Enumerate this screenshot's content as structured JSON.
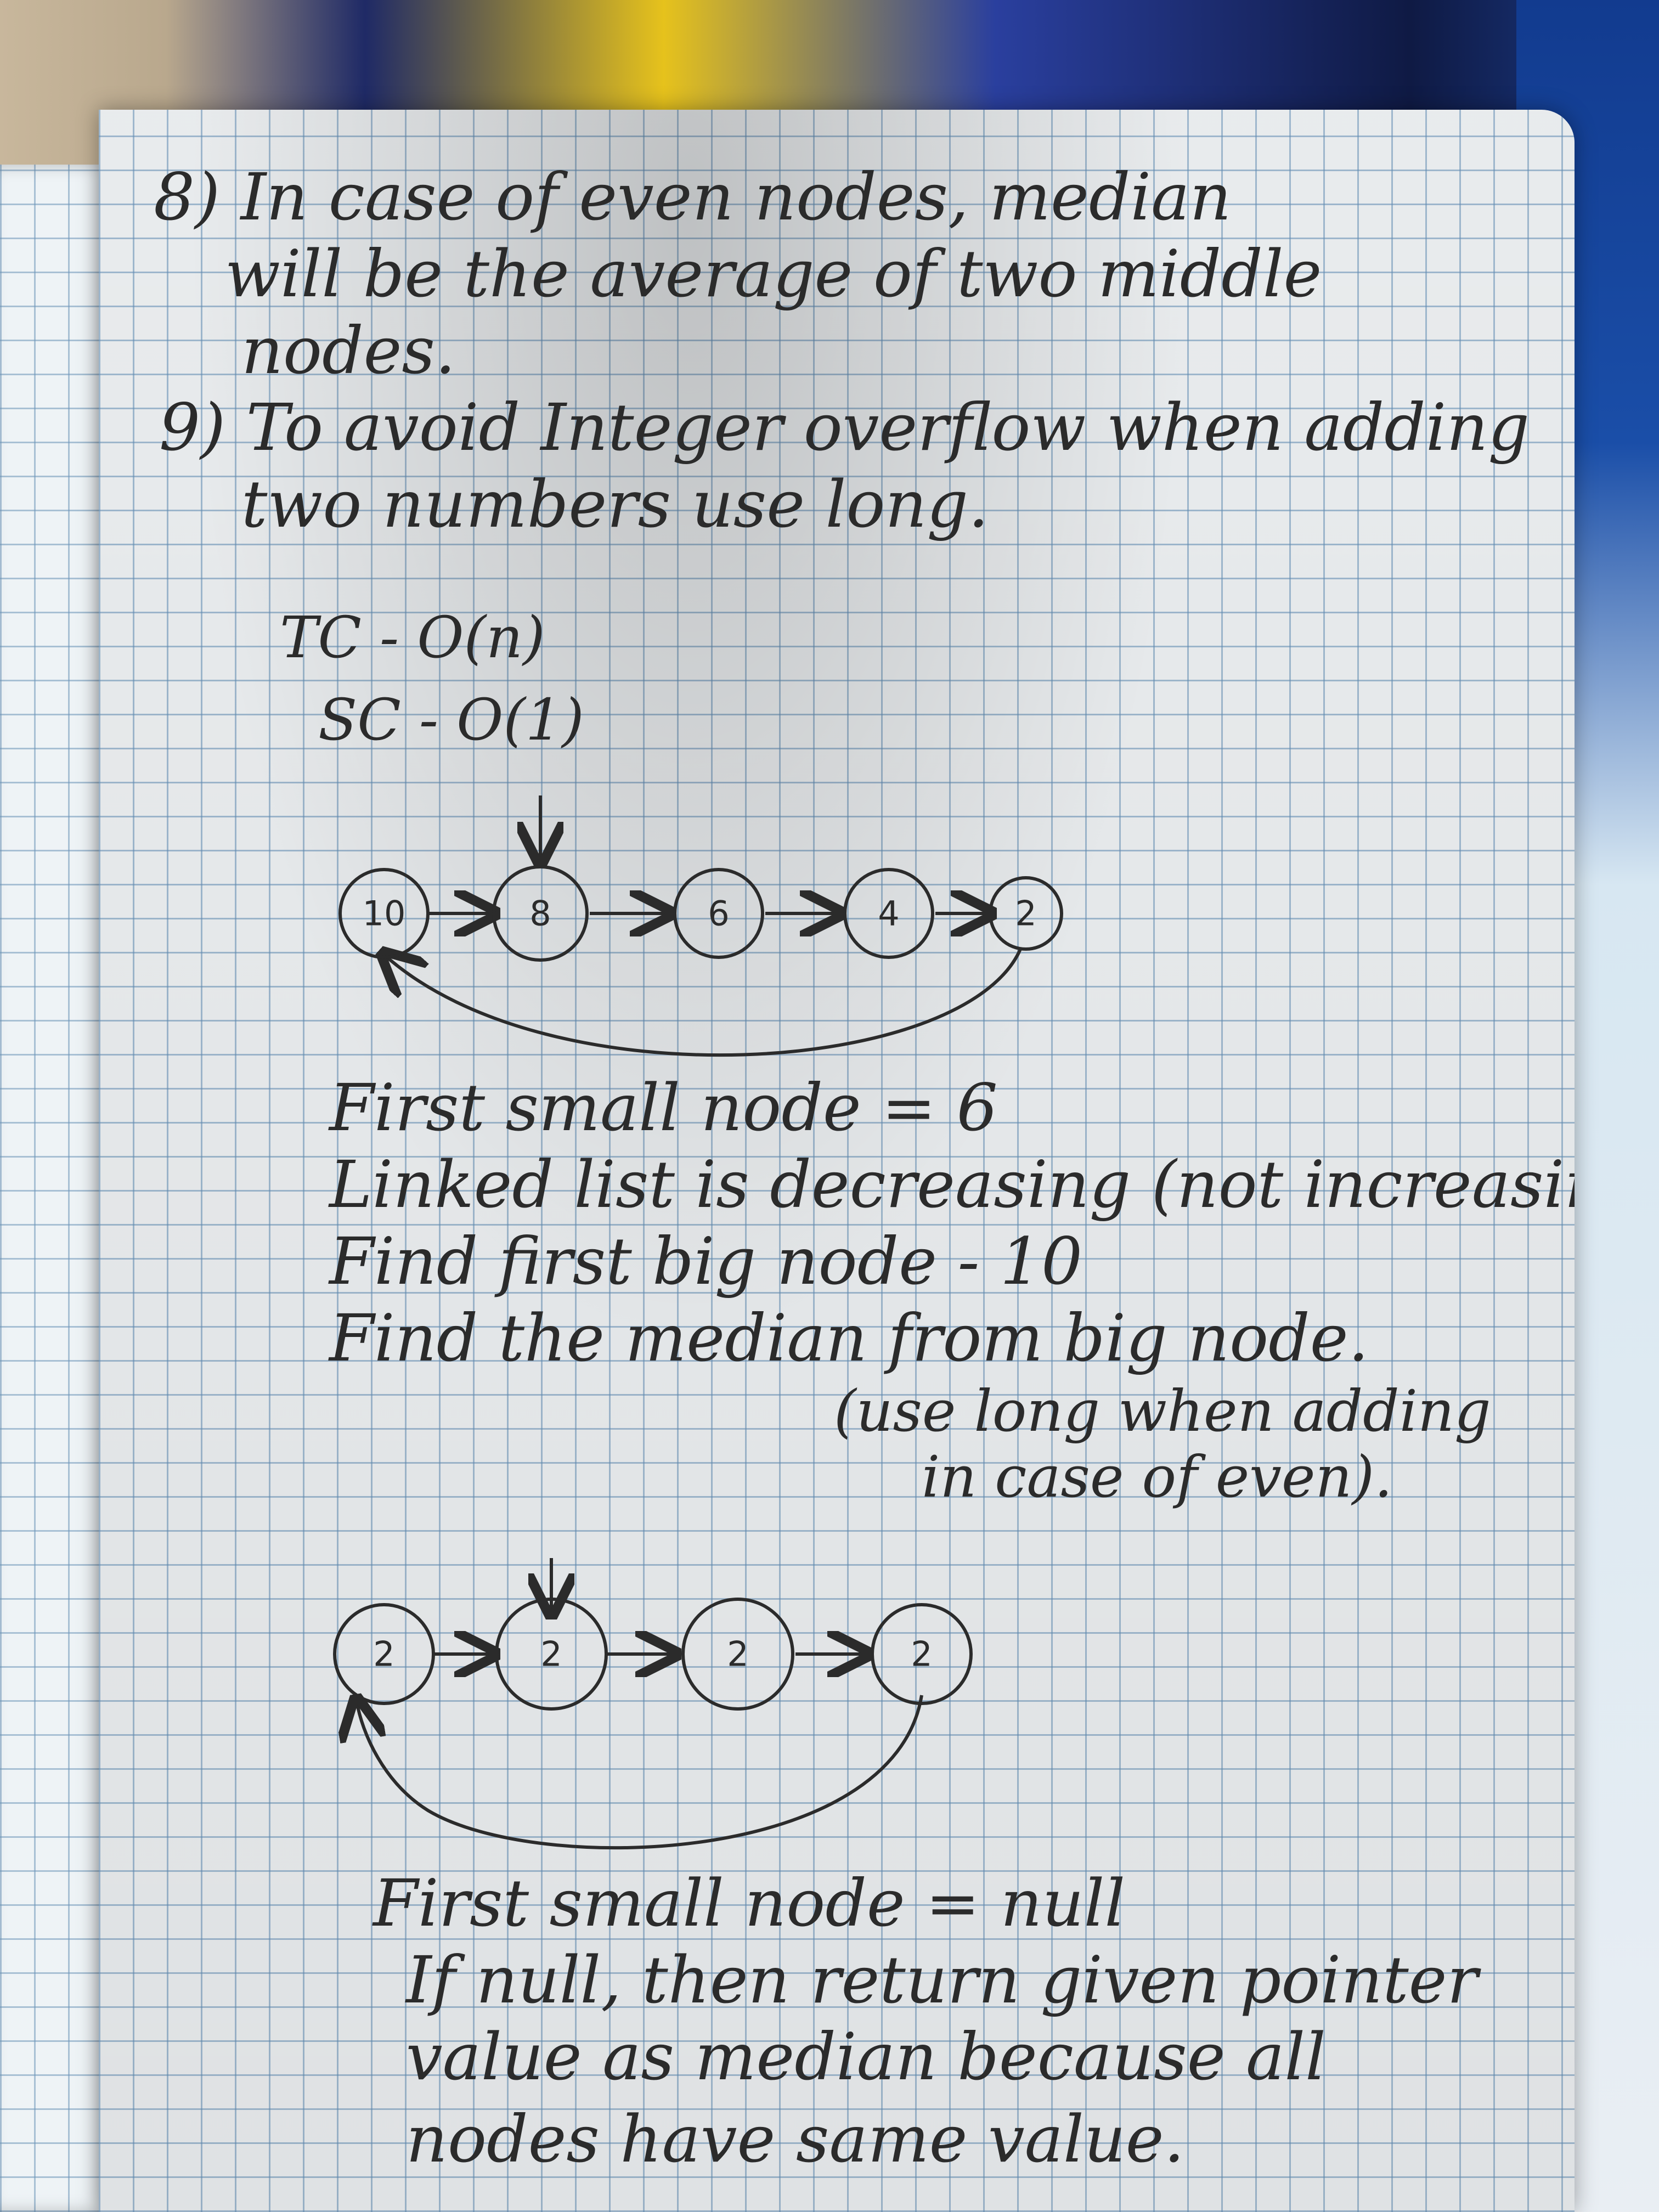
{
  "notes": {
    "point8": {
      "line1": "8) In case of even nodes, median",
      "line2": "will be the average of two middle",
      "line3": "nodes."
    },
    "point9": {
      "line1": "9) To avoid Integer overflow when adding",
      "line2": "two numbers use long."
    },
    "complexity": {
      "tc": "TC - O(n)",
      "sc": "SC - O(1)"
    },
    "example1": {
      "nodes": [
        "10",
        "8",
        "6",
        "4",
        "2"
      ],
      "lines": [
        "First small node = 6",
        "Linked list is decreasing (not increasing)",
        "Find first big node - 10",
        "Find the median from big node.",
        "(use long when adding",
        "in case of even)."
      ]
    },
    "example2": {
      "nodes": [
        "2",
        "2",
        "2",
        "2"
      ],
      "lines": [
        "First small node = null",
        "If null, then return given pointer",
        "value as median because all",
        "nodes have same value."
      ]
    }
  }
}
